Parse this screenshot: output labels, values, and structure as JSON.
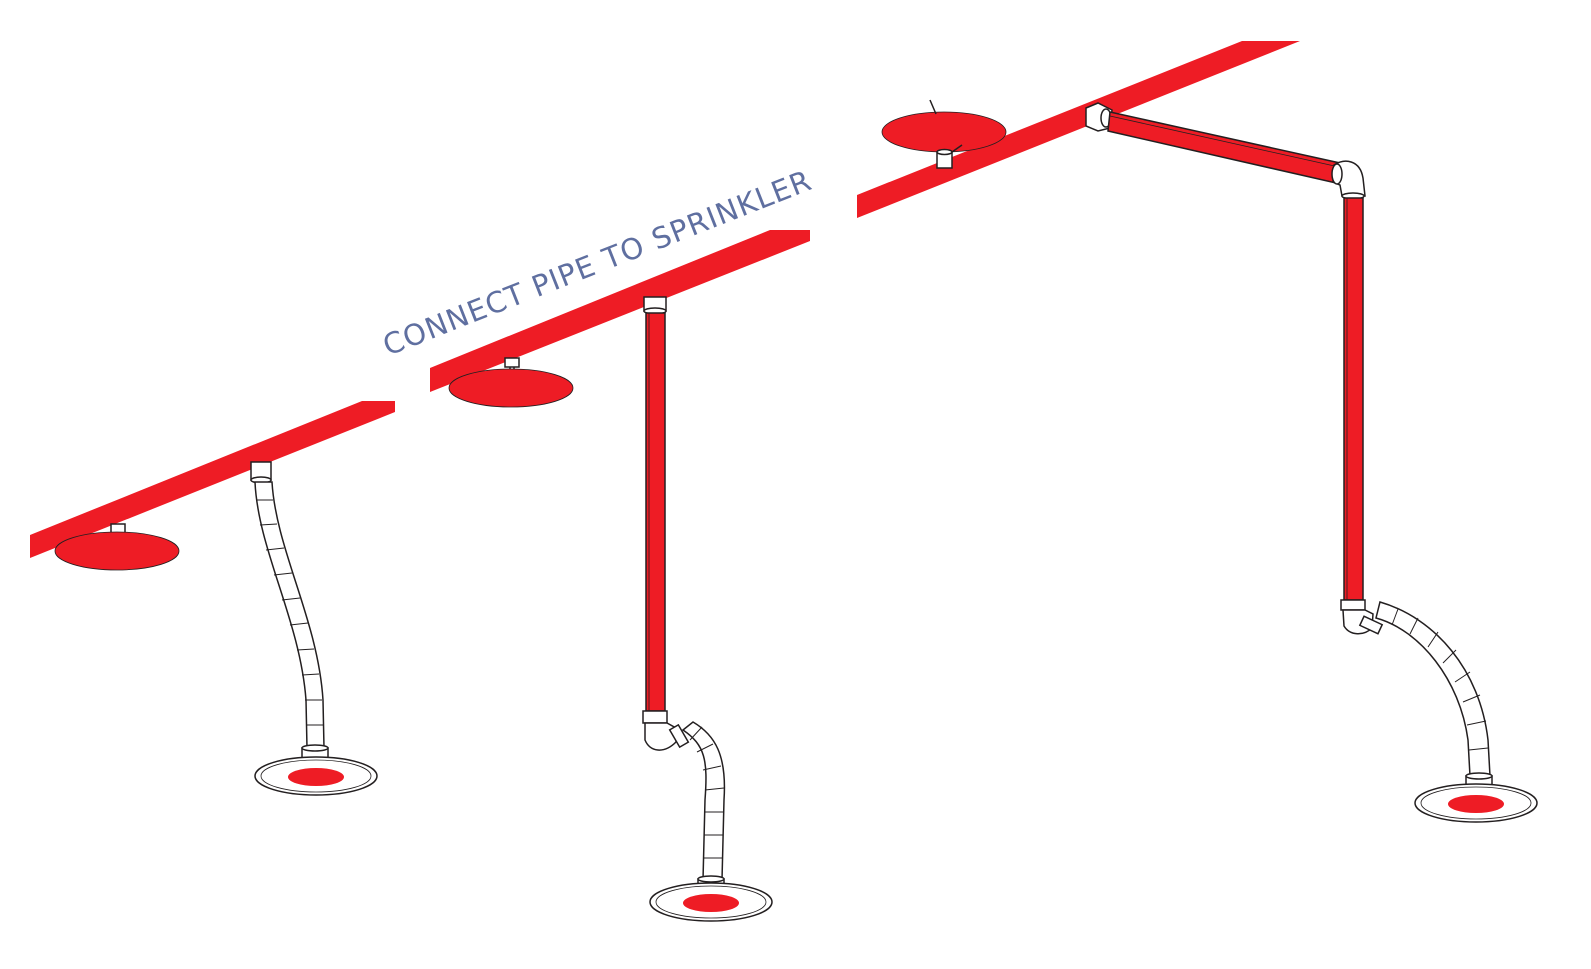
{
  "diagram": {
    "caption": "CONNECT PIPE TO SPRINKLER",
    "colors": {
      "pipe_red": "#ee1c25",
      "outline": "#231f20",
      "caption_blue": "#5f6fa0",
      "fitting_white": "#ffffff"
    },
    "elements": [
      "main-pipe",
      "ceiling-sprinkler-heads",
      "flexible-hose-drops",
      "rigid-pipe-drops",
      "elbow-fittings",
      "pendant-sprinkler-heads"
    ]
  }
}
